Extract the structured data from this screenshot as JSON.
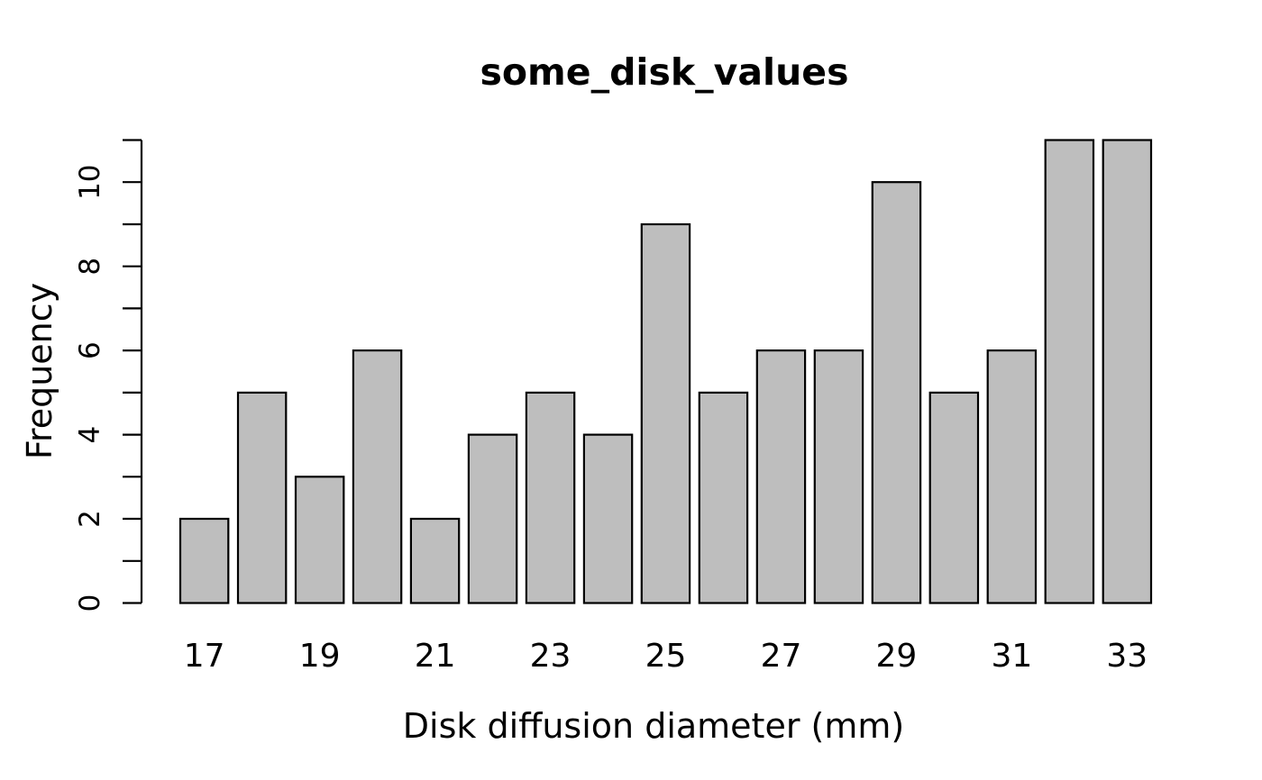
{
  "chart_data": {
    "type": "bar",
    "title": "some_disk_values",
    "xlabel": "Disk diffusion diameter (mm)",
    "ylabel": "Frequency",
    "categories": [
      17,
      18,
      19,
      20,
      21,
      22,
      23,
      24,
      25,
      26,
      27,
      28,
      29,
      30,
      31,
      32,
      33
    ],
    "values": [
      2,
      5,
      3,
      6,
      2,
      4,
      5,
      4,
      9,
      5,
      6,
      6,
      10,
      5,
      6,
      11,
      11
    ],
    "x_tick_labels": [
      "17",
      "19",
      "21",
      "23",
      "25",
      "27",
      "29",
      "31",
      "33"
    ],
    "y_tick_values": [
      0,
      1,
      2,
      3,
      4,
      5,
      6,
      7,
      8,
      9,
      10,
      11
    ],
    "y_tick_labels": [
      "0",
      "2",
      "4",
      "6",
      "8",
      "10"
    ],
    "ylim": [
      0,
      11
    ],
    "grid": false,
    "legend": "none",
    "bar_gap_ratio": 0.2,
    "colors": {
      "bar_fill": "#BEBEBE",
      "bar_border": "#000000",
      "axis": "#000000",
      "text": "#000000",
      "background": "#FFFFFF"
    }
  }
}
